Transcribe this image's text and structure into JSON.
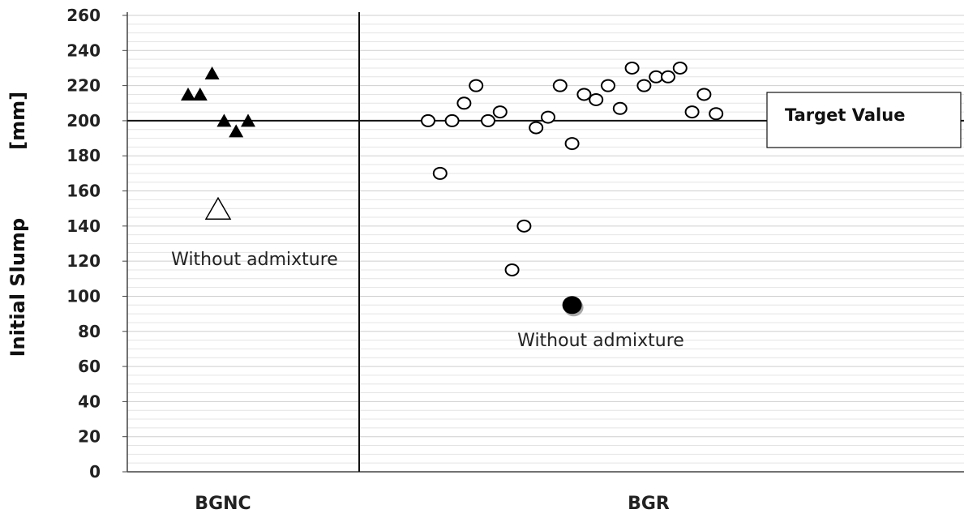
{
  "chart_data": {
    "type": "scatter",
    "ylabel_main": "Initial Slump",
    "ylabel_unit": "[mm]",
    "ylim": [
      0,
      260
    ],
    "y_ticks": [
      0,
      20,
      40,
      60,
      80,
      100,
      120,
      140,
      160,
      180,
      200,
      220,
      240,
      260
    ],
    "grid": true,
    "categories": [
      "BGNC",
      "BGR"
    ],
    "reference_line": {
      "value": 200,
      "label": "Target Value"
    },
    "series": [
      {
        "group": "BGNC",
        "marker": "triangle-filled",
        "color": "#000000",
        "points": [
          {
            "x": 1,
            "y": 215
          },
          {
            "x": 2,
            "y": 215
          },
          {
            "x": 3,
            "y": 227
          },
          {
            "x": 4,
            "y": 200
          },
          {
            "x": 5,
            "y": 194
          },
          {
            "x": 6,
            "y": 200
          }
        ]
      },
      {
        "group": "BGNC",
        "marker": "triangle-open",
        "color": "#000000",
        "annotation": "Without admixture",
        "points": [
          {
            "x": 3.5,
            "y": 150
          }
        ]
      },
      {
        "group": "BGR",
        "marker": "circle-open",
        "color": "#000000",
        "points": [
          {
            "x": 1,
            "y": 200
          },
          {
            "x": 2,
            "y": 170
          },
          {
            "x": 3,
            "y": 200
          },
          {
            "x": 4,
            "y": 210
          },
          {
            "x": 5,
            "y": 220
          },
          {
            "x": 6,
            "y": 200
          },
          {
            "x": 7,
            "y": 205
          },
          {
            "x": 8,
            "y": 115
          },
          {
            "x": 9,
            "y": 140
          },
          {
            "x": 10,
            "y": 196
          },
          {
            "x": 11,
            "y": 202
          },
          {
            "x": 12,
            "y": 220
          },
          {
            "x": 13,
            "y": 187
          },
          {
            "x": 14,
            "y": 215
          },
          {
            "x": 15,
            "y": 212
          },
          {
            "x": 16,
            "y": 220
          },
          {
            "x": 17,
            "y": 207
          },
          {
            "x": 18,
            "y": 230
          },
          {
            "x": 19,
            "y": 220
          },
          {
            "x": 20,
            "y": 225
          },
          {
            "x": 21,
            "y": 225
          },
          {
            "x": 22,
            "y": 230
          },
          {
            "x": 23,
            "y": 205
          },
          {
            "x": 24,
            "y": 215
          },
          {
            "x": 25,
            "y": 204
          }
        ]
      },
      {
        "group": "BGR",
        "marker": "circle-filled",
        "color": "#000000",
        "annotation": "Without admixture",
        "points": [
          {
            "x": 13,
            "y": 95
          }
        ]
      }
    ]
  }
}
